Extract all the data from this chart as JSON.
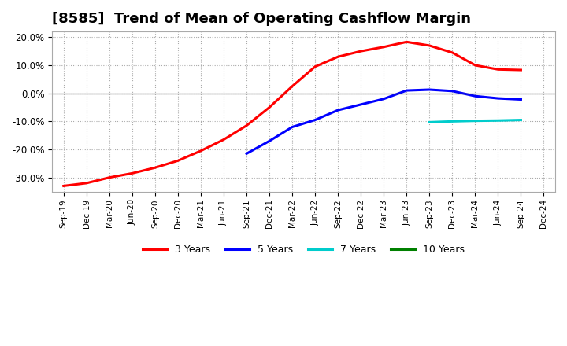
{
  "title": "[8585]  Trend of Mean of Operating Cashflow Margin",
  "title_fontsize": 13,
  "ylim": [
    -0.35,
    0.22
  ],
  "yticks": [
    -0.3,
    -0.2,
    -0.1,
    0.0,
    0.1,
    0.2
  ],
  "background_color": "#ffffff",
  "grid_color": "#aaaaaa",
  "series": {
    "3yr": {
      "color": "#ff0000",
      "label": "3 Years",
      "points": [
        [
          "Sep-19",
          -0.33
        ],
        [
          "Dec-19",
          -0.32
        ],
        [
          "Mar-20",
          -0.3
        ],
        [
          "Jun-20",
          -0.285
        ],
        [
          "Sep-20",
          -0.265
        ],
        [
          "Dec-20",
          -0.24
        ],
        [
          "Mar-21",
          -0.205
        ],
        [
          "Jun-21",
          -0.165
        ],
        [
          "Sep-21",
          -0.115
        ],
        [
          "Dec-21",
          -0.05
        ],
        [
          "Mar-22",
          0.025
        ],
        [
          "Jun-22",
          0.095
        ],
        [
          "Sep-22",
          0.13
        ],
        [
          "Dec-22",
          0.15
        ],
        [
          "Mar-23",
          0.165
        ],
        [
          "Jun-23",
          0.183
        ],
        [
          "Sep-23",
          0.17
        ],
        [
          "Dec-23",
          0.145
        ],
        [
          "Mar-24",
          0.1
        ],
        [
          "Jun-24",
          0.085
        ],
        [
          "Sep-24",
          0.083
        ]
      ]
    },
    "5yr": {
      "color": "#0000ff",
      "label": "5 Years",
      "points": [
        [
          "Sep-21",
          -0.215
        ],
        [
          "Dec-21",
          -0.17
        ],
        [
          "Mar-22",
          -0.12
        ],
        [
          "Jun-22",
          -0.095
        ],
        [
          "Sep-22",
          -0.06
        ],
        [
          "Dec-22",
          -0.04
        ],
        [
          "Mar-23",
          -0.02
        ],
        [
          "Jun-23",
          0.01
        ],
        [
          "Sep-23",
          0.013
        ],
        [
          "Dec-23",
          0.008
        ],
        [
          "Mar-24",
          -0.01
        ],
        [
          "Jun-24",
          -0.018
        ],
        [
          "Sep-24",
          -0.022
        ]
      ]
    },
    "7yr": {
      "color": "#00cccc",
      "label": "7 Years",
      "points": [
        [
          "Sep-23",
          -0.103
        ],
        [
          "Dec-23",
          -0.1
        ],
        [
          "Mar-24",
          -0.098
        ],
        [
          "Jun-24",
          -0.097
        ],
        [
          "Sep-24",
          -0.095
        ]
      ]
    },
    "10yr": {
      "color": "#008000",
      "label": "10 Years",
      "points": []
    }
  },
  "xtick_labels": [
    "Sep-19",
    "Dec-19",
    "Mar-20",
    "Jun-20",
    "Sep-20",
    "Dec-20",
    "Mar-21",
    "Jun-21",
    "Sep-21",
    "Dec-21",
    "Mar-22",
    "Jun-22",
    "Sep-22",
    "Dec-22",
    "Mar-23",
    "Jun-23",
    "Sep-23",
    "Dec-23",
    "Mar-24",
    "Jun-24",
    "Sep-24",
    "Dec-24"
  ],
  "linewidth": 2.2
}
